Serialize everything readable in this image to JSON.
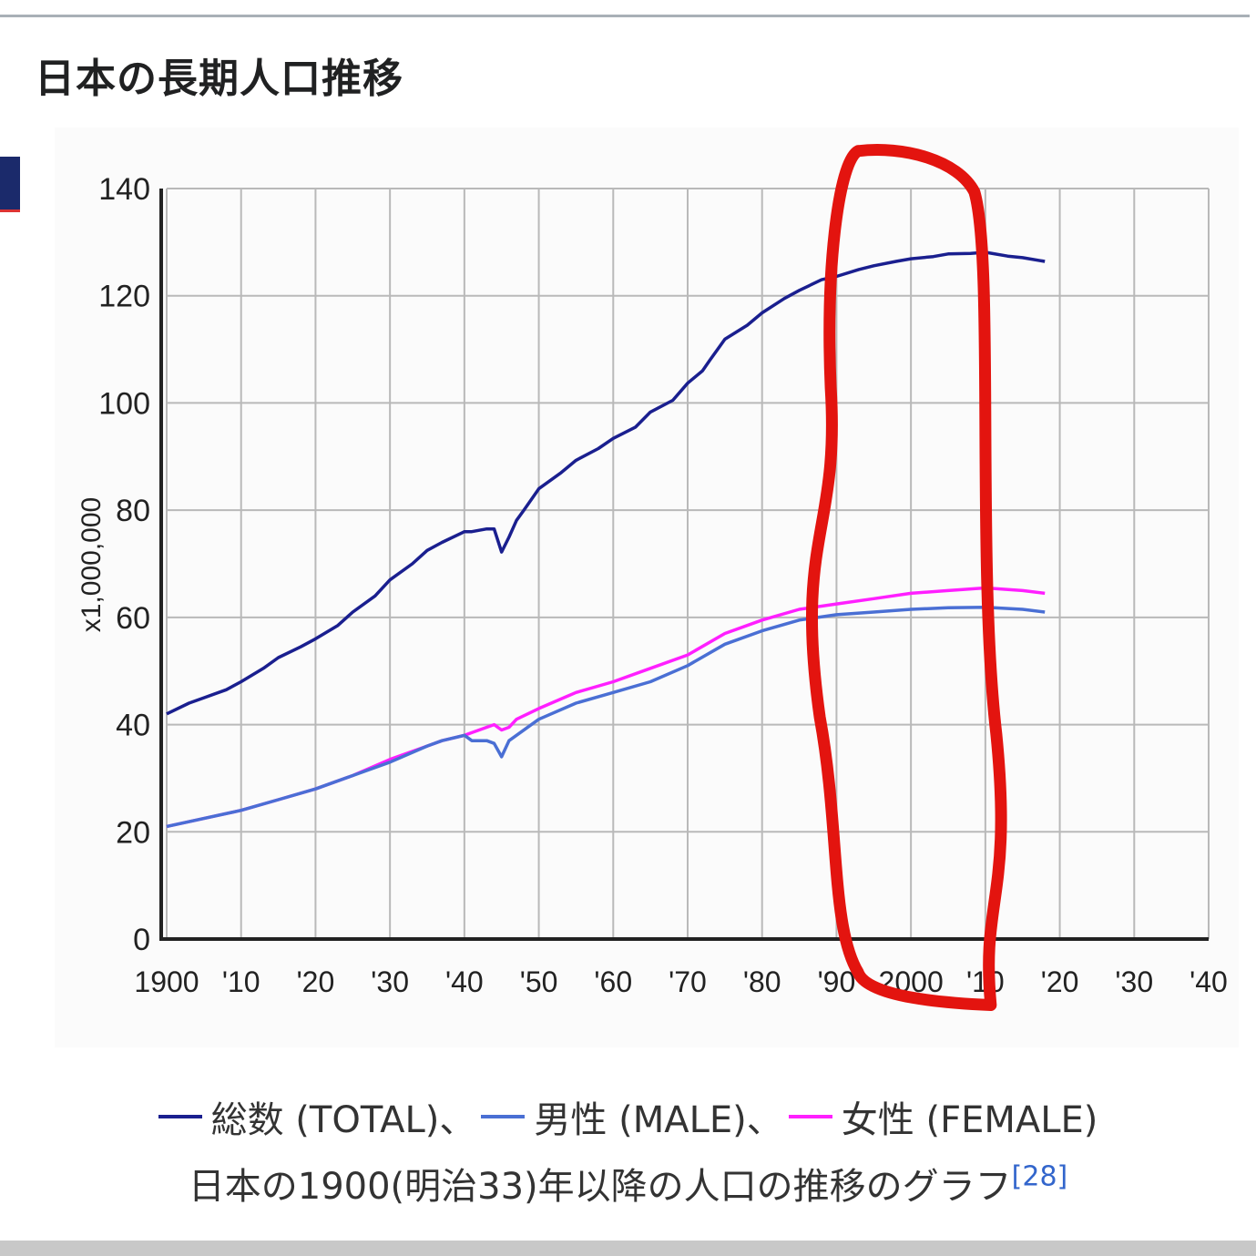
{
  "page": {
    "title": "日本の長期人口推移"
  },
  "chart_data": {
    "type": "line",
    "ylabel": "x1,000,000",
    "xlabel": "",
    "xlim": [
      1900,
      2040
    ],
    "ylim": [
      0,
      140
    ],
    "x_ticks": [
      {
        "value": 1900,
        "label": "1900"
      },
      {
        "value": 1910,
        "label": "'10"
      },
      {
        "value": 1920,
        "label": "'20"
      },
      {
        "value": 1930,
        "label": "'30"
      },
      {
        "value": 1940,
        "label": "'40"
      },
      {
        "value": 1950,
        "label": "'50"
      },
      {
        "value": 1960,
        "label": "'60"
      },
      {
        "value": 1970,
        "label": "'70"
      },
      {
        "value": 1980,
        "label": "'80"
      },
      {
        "value": 1990,
        "label": "'90"
      },
      {
        "value": 2000,
        "label": "2000"
      },
      {
        "value": 2010,
        "label": "'10"
      },
      {
        "value": 2020,
        "label": "'20"
      },
      {
        "value": 2030,
        "label": "'30"
      },
      {
        "value": 2040,
        "label": "'40"
      }
    ],
    "y_ticks": [
      0,
      20,
      40,
      60,
      80,
      100,
      120,
      140
    ],
    "grid": true,
    "legend_position": "bottom",
    "series": [
      {
        "name": "総数 (TOTAL)",
        "color": "#1a1f8f",
        "x": [
          1900,
          1903,
          1905,
          1908,
          1910,
          1913,
          1915,
          1918,
          1920,
          1923,
          1925,
          1928,
          1930,
          1933,
          1935,
          1937,
          1940,
          1941,
          1943,
          1944,
          1945,
          1946,
          1947,
          1948,
          1950,
          1953,
          1955,
          1958,
          1960,
          1963,
          1965,
          1968,
          1970,
          1972,
          1973,
          1975,
          1978,
          1980,
          1983,
          1985,
          1988,
          1990,
          1993,
          1995,
          1998,
          2000,
          2003,
          2005,
          2008,
          2010,
          2013,
          2015,
          2018
        ],
        "y": [
          42,
          44,
          45,
          46.5,
          48,
          50.5,
          52.5,
          54.5,
          56,
          58.5,
          61,
          64,
          67,
          70,
          72.5,
          74,
          76,
          76,
          76.5,
          76.5,
          72.2,
          75,
          78.1,
          80,
          84,
          87,
          89.3,
          91.5,
          93.4,
          95.5,
          98.3,
          100.5,
          103.7,
          106,
          108,
          111.9,
          114.5,
          116.8,
          119.5,
          121,
          123,
          123.6,
          124.9,
          125.6,
          126.4,
          126.9,
          127.3,
          127.8,
          127.9,
          128.1,
          127.4,
          127.1,
          126.4
        ]
      },
      {
        "name": "男性 (MALE)",
        "color": "#4a6fd4",
        "x": [
          1900,
          1905,
          1910,
          1915,
          1920,
          1925,
          1930,
          1935,
          1937,
          1940,
          1941,
          1943,
          1944,
          1945,
          1946,
          1947,
          1950,
          1955,
          1960,
          1965,
          1970,
          1975,
          1980,
          1985,
          1990,
          1995,
          2000,
          2005,
          2010,
          2015,
          2018
        ],
        "y": [
          21,
          22.5,
          24,
          26,
          28,
          30.5,
          33,
          36,
          37,
          38,
          37,
          37,
          36.5,
          34,
          37,
          38,
          41,
          44,
          46,
          48,
          51,
          55,
          57.5,
          59.5,
          60.5,
          61,
          61.5,
          61.8,
          61.9,
          61.5,
          61
        ],
        "z": 1
      },
      {
        "name": "女性 (FEMALE)",
        "color": "#ff1fff",
        "x": [
          1900,
          1905,
          1910,
          1915,
          1920,
          1925,
          1930,
          1935,
          1937,
          1940,
          1941,
          1943,
          1944,
          1945,
          1946,
          1947,
          1950,
          1955,
          1960,
          1965,
          1970,
          1975,
          1980,
          1985,
          1990,
          1995,
          2000,
          2005,
          2010,
          2015,
          2018
        ],
        "y": [
          21,
          22.5,
          24,
          26,
          28,
          30.5,
          33.5,
          36,
          37,
          38,
          38.5,
          39.5,
          40,
          39,
          39.5,
          41,
          43,
          46,
          48,
          50.5,
          53,
          57,
          59.5,
          61.5,
          62.5,
          63.5,
          64.5,
          65,
          65.5,
          65,
          64.5
        ]
      }
    ],
    "annotations": [
      {
        "type": "hand-drawn-outline",
        "color": "#e3140f",
        "x_range": [
          1988,
          2010
        ],
        "y_range": [
          -13,
          147
        ]
      }
    ]
  },
  "legend": [
    {
      "label": "総数 (TOTAL)、",
      "color": "#1a1f8f"
    },
    {
      "label": "男性 (MALE)、",
      "color": "#4a6fd4"
    },
    {
      "label": "女性 (FEMALE)",
      "color": "#ff1fff"
    }
  ],
  "caption": {
    "text": "日本の1900(明治33)年以降の人口の推移のグラフ",
    "cite": "[28]"
  }
}
